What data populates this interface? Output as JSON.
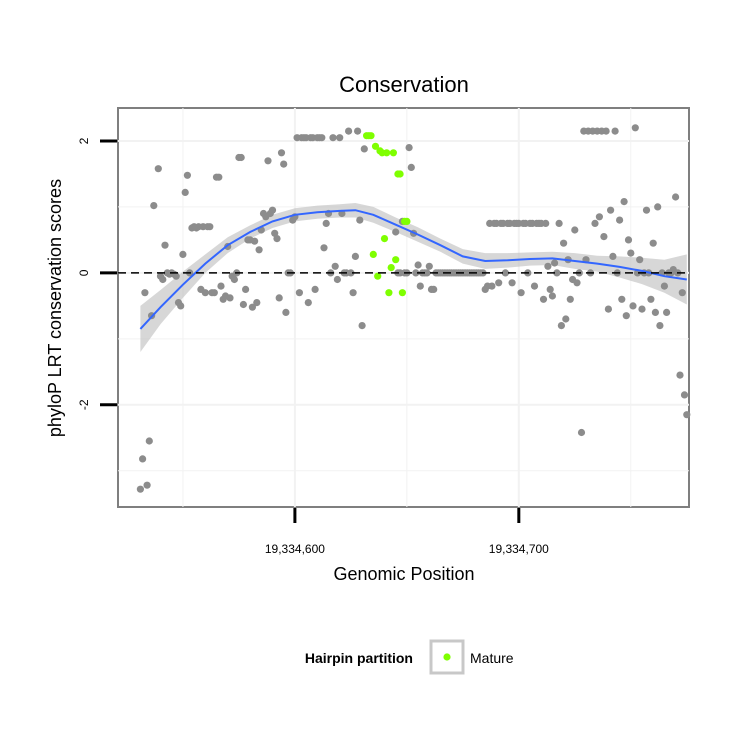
{
  "chart_data": {
    "type": "scatter",
    "title": "Conservation",
    "xlabel": "Genomic Position",
    "ylabel": "phyloP LRT conservation scores",
    "xlim": [
      19334521,
      19334776
    ],
    "ylim": [
      -3.55,
      2.5
    ],
    "x_ticks": [
      19334600,
      19334700
    ],
    "x_tick_labels": [
      "19,334,600",
      "19,334,700"
    ],
    "y_ticks": [
      -2,
      0,
      2
    ],
    "y_tick_labels": [
      "-2",
      "0",
      "2"
    ],
    "grid": true,
    "reference_line": {
      "y": 0,
      "style": "dashed"
    },
    "legend": {
      "title": "Hairpin partition",
      "position": "bottom",
      "entries": [
        {
          "label": "Mature",
          "color": "#7fff00"
        }
      ]
    },
    "series": [
      {
        "color": "#8c8c8c",
        "points": [
          [
            19334531,
            -3.28
          ],
          [
            19334532,
            -2.82
          ],
          [
            19334534,
            -3.22
          ],
          [
            19334535,
            -2.55
          ],
          [
            19334533,
            -0.3
          ],
          [
            19334536,
            -0.65
          ],
          [
            19334537,
            1.02
          ],
          [
            19334539,
            1.58
          ],
          [
            19334540,
            -0.05
          ],
          [
            19334541,
            -0.1
          ],
          [
            19334542,
            0.42
          ],
          [
            19334543,
            0.0
          ],
          [
            19334544,
            -0.02
          ],
          [
            19334545,
            0.0
          ],
          [
            19334546,
            -0.02
          ],
          [
            19334547,
            -0.05
          ],
          [
            19334548,
            -0.45
          ],
          [
            19334549,
            -0.5
          ],
          [
            19334550,
            0.28
          ],
          [
            19334551,
            1.22
          ],
          [
            19334552,
            1.48
          ],
          [
            19334553,
            0.0
          ],
          [
            19334554,
            0.68
          ],
          [
            19334555,
            0.7
          ],
          [
            19334556,
            0.68
          ],
          [
            19334557,
            0.7
          ],
          [
            19334558,
            -0.25
          ],
          [
            19334559,
            0.7
          ],
          [
            19334560,
            -0.3
          ],
          [
            19334561,
            0.7
          ],
          [
            19334562,
            0.7
          ],
          [
            19334563,
            -0.3
          ],
          [
            19334564,
            -0.3
          ],
          [
            19334565,
            1.45
          ],
          [
            19334566,
            1.45
          ],
          [
            19334567,
            -0.2
          ],
          [
            19334568,
            -0.4
          ],
          [
            19334569,
            -0.35
          ],
          [
            19334570,
            0.4
          ],
          [
            19334571,
            -0.38
          ],
          [
            19334572,
            -0.05
          ],
          [
            19334573,
            -0.1
          ],
          [
            19334574,
            0.0
          ],
          [
            19334575,
            1.75
          ],
          [
            19334576,
            1.75
          ],
          [
            19334577,
            -0.48
          ],
          [
            19334578,
            -0.25
          ],
          [
            19334579,
            0.5
          ],
          [
            19334580,
            0.5
          ],
          [
            19334581,
            -0.52
          ],
          [
            19334582,
            0.48
          ],
          [
            19334583,
            -0.45
          ],
          [
            19334584,
            0.35
          ],
          [
            19334585,
            0.65
          ],
          [
            19334586,
            0.9
          ],
          [
            19334587,
            0.85
          ],
          [
            19334588,
            1.7
          ],
          [
            19334589,
            0.9
          ],
          [
            19334590,
            0.95
          ],
          [
            19334591,
            0.6
          ],
          [
            19334592,
            0.52
          ],
          [
            19334593,
            -0.38
          ],
          [
            19334594,
            1.82
          ],
          [
            19334595,
            1.65
          ],
          [
            19334596,
            -0.6
          ],
          [
            19334597,
            0.0
          ],
          [
            19334598,
            0.0
          ],
          [
            19334599,
            0.8
          ],
          [
            19334600,
            0.85
          ],
          [
            19334601,
            2.05
          ],
          [
            19334602,
            -0.3
          ],
          [
            19334603,
            2.05
          ],
          [
            19334604,
            2.05
          ],
          [
            19334605,
            2.05
          ],
          [
            19334606,
            -0.45
          ],
          [
            19334607,
            2.05
          ],
          [
            19334608,
            2.05
          ],
          [
            19334609,
            -0.25
          ],
          [
            19334610,
            2.05
          ],
          [
            19334611,
            2.05
          ],
          [
            19334612,
            2.05
          ],
          [
            19334613,
            0.38
          ],
          [
            19334614,
            0.75
          ],
          [
            19334615,
            0.9
          ],
          [
            19334616,
            0.0
          ],
          [
            19334617,
            2.05
          ],
          [
            19334618,
            0.1
          ],
          [
            19334619,
            -0.1
          ],
          [
            19334620,
            2.05
          ],
          [
            19334621,
            0.9
          ],
          [
            19334622,
            0.0
          ],
          [
            19334623,
            0.0
          ],
          [
            19334624,
            2.15
          ],
          [
            19334625,
            0.0
          ],
          [
            19334626,
            -0.3
          ],
          [
            19334627,
            0.25
          ],
          [
            19334628,
            2.15
          ],
          [
            19334629,
            0.8
          ],
          [
            19334630,
            -0.8
          ],
          [
            19334631,
            1.88
          ],
          [
            19334645,
            0.62
          ],
          [
            19334646,
            0.0
          ],
          [
            19334647,
            0.0
          ],
          [
            19334648,
            0.78
          ],
          [
            19334649,
            0.0
          ],
          [
            19334650,
            0.0
          ],
          [
            19334651,
            1.9
          ],
          [
            19334652,
            1.6
          ],
          [
            19334653,
            0.6
          ],
          [
            19334654,
            0.0
          ],
          [
            19334655,
            0.12
          ],
          [
            19334656,
            -0.2
          ],
          [
            19334657,
            0.0
          ],
          [
            19334658,
            0.0
          ],
          [
            19334659,
            0.0
          ],
          [
            19334660,
            0.1
          ],
          [
            19334661,
            -0.25
          ],
          [
            19334662,
            -0.25
          ],
          [
            19334663,
            0.0
          ],
          [
            19334664,
            0.0
          ],
          [
            19334665,
            0.0
          ],
          [
            19334666,
            0.0
          ],
          [
            19334667,
            0.0
          ],
          [
            19334668,
            0.0
          ],
          [
            19334669,
            0.0
          ],
          [
            19334670,
            0.0
          ],
          [
            19334671,
            0.0
          ],
          [
            19334672,
            0.0
          ],
          [
            19334673,
            0.0
          ],
          [
            19334674,
            0.0
          ],
          [
            19334675,
            0.0
          ],
          [
            19334676,
            0.0
          ],
          [
            19334677,
            0.0
          ],
          [
            19334678,
            0.0
          ],
          [
            19334679,
            0.0
          ],
          [
            19334680,
            0.0
          ],
          [
            19334681,
            0.0
          ],
          [
            19334682,
            0.0
          ],
          [
            19334683,
            0.0
          ],
          [
            19334684,
            0.0
          ],
          [
            19334685,
            -0.25
          ],
          [
            19334686,
            -0.2
          ],
          [
            19334687,
            0.75
          ],
          [
            19334688,
            -0.2
          ],
          [
            19334689,
            0.75
          ],
          [
            19334690,
            0.75
          ],
          [
            19334691,
            -0.15
          ],
          [
            19334692,
            0.75
          ],
          [
            19334693,
            0.75
          ],
          [
            19334694,
            0.0
          ],
          [
            19334695,
            0.75
          ],
          [
            19334696,
            0.75
          ],
          [
            19334697,
            -0.15
          ],
          [
            19334698,
            0.75
          ],
          [
            19334699,
            0.75
          ],
          [
            19334700,
            0.75
          ],
          [
            19334701,
            -0.3
          ],
          [
            19334702,
            0.75
          ],
          [
            19334703,
            0.75
          ],
          [
            19334704,
            0.0
          ],
          [
            19334705,
            0.75
          ],
          [
            19334706,
            0.75
          ],
          [
            19334707,
            -0.2
          ],
          [
            19334708,
            0.75
          ],
          [
            19334709,
            0.75
          ],
          [
            19334710,
            0.75
          ],
          [
            19334711,
            -0.4
          ],
          [
            19334712,
            0.75
          ],
          [
            19334713,
            0.1
          ],
          [
            19334714,
            -0.25
          ],
          [
            19334715,
            -0.35
          ],
          [
            19334716,
            0.15
          ],
          [
            19334717,
            0.0
          ],
          [
            19334718,
            0.75
          ],
          [
            19334719,
            -0.8
          ],
          [
            19334720,
            0.45
          ],
          [
            19334721,
            -0.7
          ],
          [
            19334722,
            0.2
          ],
          [
            19334723,
            -0.4
          ],
          [
            19334724,
            -0.1
          ],
          [
            19334725,
            0.65
          ],
          [
            19334726,
            -0.15
          ],
          [
            19334727,
            0.0
          ],
          [
            19334728,
            -2.42
          ],
          [
            19334729,
            2.15
          ],
          [
            19334730,
            0.2
          ],
          [
            19334731,
            2.15
          ],
          [
            19334732,
            0.0
          ],
          [
            19334733,
            2.15
          ],
          [
            19334734,
            0.75
          ],
          [
            19334735,
            2.15
          ],
          [
            19334736,
            0.85
          ],
          [
            19334737,
            2.15
          ],
          [
            19334738,
            0.55
          ],
          [
            19334739,
            2.15
          ],
          [
            19334740,
            -0.55
          ],
          [
            19334741,
            0.95
          ],
          [
            19334742,
            0.25
          ],
          [
            19334743,
            2.15
          ],
          [
            19334744,
            0.0
          ],
          [
            19334745,
            0.8
          ],
          [
            19334746,
            -0.4
          ],
          [
            19334747,
            1.08
          ],
          [
            19334748,
            -0.65
          ],
          [
            19334749,
            0.5
          ],
          [
            19334750,
            0.3
          ],
          [
            19334751,
            -0.5
          ],
          [
            19334752,
            2.2
          ],
          [
            19334753,
            0.0
          ],
          [
            19334754,
            0.2
          ],
          [
            19334755,
            -0.55
          ],
          [
            19334756,
            0.0
          ],
          [
            19334757,
            0.95
          ],
          [
            19334758,
            0.0
          ],
          [
            19334759,
            -0.4
          ],
          [
            19334760,
            0.45
          ],
          [
            19334761,
            -0.6
          ],
          [
            19334762,
            1.0
          ],
          [
            19334763,
            -0.8
          ],
          [
            19334764,
            0.0
          ],
          [
            19334765,
            -0.2
          ],
          [
            19334766,
            -0.6
          ],
          [
            19334767,
            0.0
          ],
          [
            19334768,
            0.0
          ],
          [
            19334769,
            0.05
          ],
          [
            19334770,
            1.15
          ],
          [
            19334771,
            0.0
          ],
          [
            19334772,
            -1.55
          ],
          [
            19334773,
            -0.3
          ],
          [
            19334774,
            -1.85
          ],
          [
            19334775,
            -2.15
          ]
        ]
      },
      {
        "name": "Mature",
        "color": "#7fff00",
        "points": [
          [
            19334632,
            2.08
          ],
          [
            19334633,
            2.08
          ],
          [
            19334634,
            2.08
          ],
          [
            19334635,
            0.28
          ],
          [
            19334636,
            1.92
          ],
          [
            19334637,
            -0.05
          ],
          [
            19334638,
            1.85
          ],
          [
            19334639,
            1.82
          ],
          [
            19334640,
            0.52
          ],
          [
            19334641,
            1.82
          ],
          [
            19334642,
            -0.3
          ],
          [
            19334643,
            0.08
          ],
          [
            19334644,
            1.82
          ],
          [
            19334645,
            0.2
          ],
          [
            19334646,
            1.5
          ],
          [
            19334647,
            1.5
          ],
          [
            19334648,
            -0.3
          ],
          [
            19334649,
            0.78
          ],
          [
            19334650,
            0.78
          ]
        ]
      }
    ],
    "smooth": {
      "color": "#3366ff",
      "x": [
        19334531,
        19334540,
        19334550,
        19334560,
        19334570,
        19334580,
        19334590,
        19334600,
        19334610,
        19334620,
        19334627,
        19334635,
        19334645,
        19334655,
        19334665,
        19334675,
        19334685,
        19334695,
        19334705,
        19334715,
        19334725,
        19334735,
        19334745,
        19334755,
        19334765,
        19334775
      ],
      "y": [
        -0.85,
        -0.52,
        -0.18,
        0.14,
        0.42,
        0.62,
        0.78,
        0.88,
        0.92,
        0.94,
        0.95,
        0.88,
        0.73,
        0.58,
        0.42,
        0.25,
        0.18,
        0.19,
        0.21,
        0.22,
        0.18,
        0.14,
        0.09,
        0.03,
        -0.05,
        -0.1
      ],
      "lower": [
        -1.2,
        -0.78,
        -0.38,
        0.0,
        0.3,
        0.52,
        0.68,
        0.78,
        0.82,
        0.84,
        0.84,
        0.76,
        0.62,
        0.47,
        0.32,
        0.14,
        0.06,
        0.08,
        0.11,
        0.12,
        0.06,
        0.02,
        -0.07,
        -0.17,
        -0.3,
        -0.48
      ],
      "upper": [
        -0.5,
        -0.26,
        0.02,
        0.28,
        0.54,
        0.72,
        0.88,
        0.98,
        1.02,
        1.04,
        1.06,
        1.0,
        0.84,
        0.69,
        0.52,
        0.36,
        0.3,
        0.3,
        0.31,
        0.32,
        0.3,
        0.26,
        0.25,
        0.23,
        0.2,
        0.28
      ]
    }
  }
}
